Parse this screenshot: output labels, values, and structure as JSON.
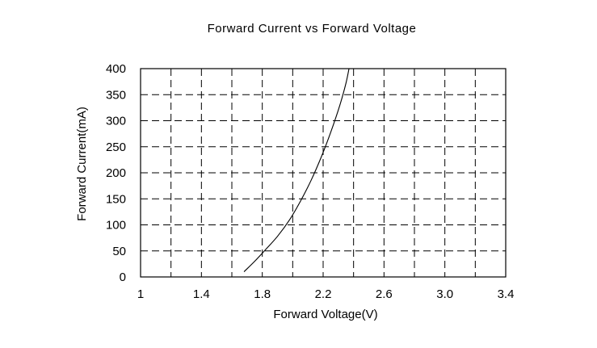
{
  "chart_data": {
    "type": "line",
    "title": "Forward Current vs Forward Voltage",
    "xlabel": "Forward Voltage(V)",
    "ylabel": "Forward Current(mA)",
    "xlim": [
      1.0,
      3.4
    ],
    "ylim": [
      0,
      400
    ],
    "x_tick_labels": [
      {
        "value": 1.0,
        "label": "1"
      },
      {
        "value": 1.4,
        "label": "1.4"
      },
      {
        "value": 1.8,
        "label": "1.8"
      },
      {
        "value": 2.2,
        "label": "2.2"
      },
      {
        "value": 2.6,
        "label": "2.6"
      },
      {
        "value": 3.0,
        "label": "3.0"
      },
      {
        "value": 3.4,
        "label": "3.4"
      }
    ],
    "x_grid_lines": [
      1.2,
      1.4,
      1.6,
      1.8,
      2.0,
      2.2,
      2.4,
      2.6,
      2.8,
      3.0,
      3.2
    ],
    "y_ticks": [
      0,
      50,
      100,
      150,
      200,
      250,
      300,
      350,
      400
    ],
    "y_grid_lines": [
      50,
      100,
      150,
      200,
      250,
      300,
      350
    ],
    "grid": true,
    "series": [
      {
        "x": [
          1.68,
          1.75,
          1.82,
          1.9,
          1.98,
          2.05,
          2.12,
          2.19,
          2.25,
          2.31,
          2.35,
          2.37
        ],
        "y": [
          10,
          30,
          52,
          78,
          110,
          145,
          185,
          232,
          278,
          330,
          372,
          400
        ]
      }
    ]
  }
}
